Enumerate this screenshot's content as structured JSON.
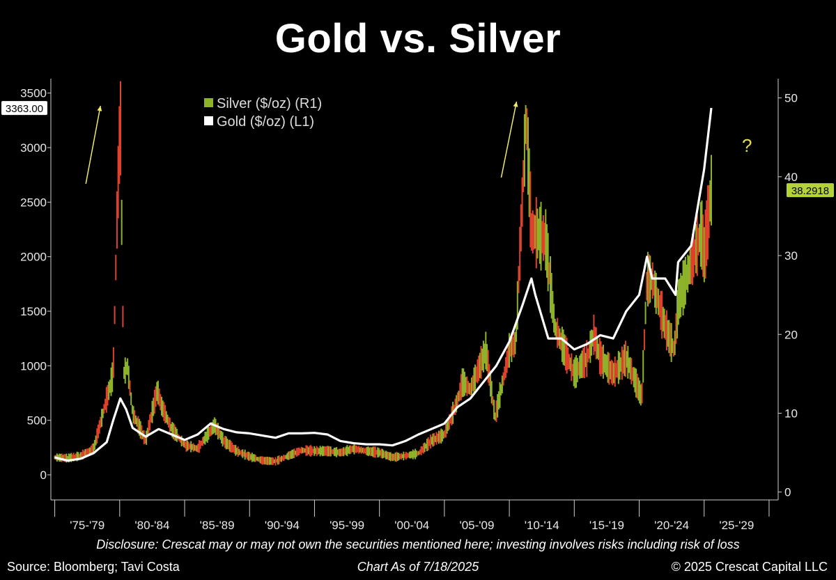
{
  "chart_data": {
    "type": "line",
    "title": "Gold vs. Silver",
    "x_period_labels": [
      "'75-'79",
      "'80-'84",
      "'85-'89",
      "'90-'94",
      "'95-'99",
      "'00-'04",
      "'05-'09",
      "'10-'14",
      "'15-'19",
      "'20-'24",
      "'25-'29"
    ],
    "y_left": {
      "ticks": [
        0,
        500,
        1000,
        1500,
        2000,
        2500,
        3000,
        3500
      ],
      "range": [
        -230,
        3600
      ]
    },
    "y_right": {
      "ticks": [
        0,
        10,
        20,
        30,
        40,
        50
      ],
      "range": [
        -1,
        52
      ]
    },
    "x_range": [
      1974.7,
      2030.7
    ],
    "series": [
      {
        "name": "Silver ($/oz) (R1)",
        "axis": "right",
        "color": "#8db32a",
        "x": [
          1975,
          1976,
          1977,
          1978,
          1979.5,
          1979.8,
          1980.05,
          1980.3,
          1980.6,
          1981,
          1982,
          1982.9,
          1983.2,
          1984,
          1985,
          1986,
          1987.3,
          1988,
          1989,
          1990,
          1991,
          1992,
          1993,
          1994,
          1995,
          1996,
          1997,
          1998,
          1999,
          2000,
          2001,
          2002,
          2003,
          2004,
          2005,
          2006,
          2006.4,
          2007,
          2008.2,
          2008.9,
          2009.5,
          2010,
          2010.5,
          2011.3,
          2011.7,
          2012,
          2012.8,
          2013.5,
          2014,
          2015,
          2016,
          2016.5,
          2017,
          2018,
          2019,
          2020.2,
          2020.6,
          2021,
          2022,
          2022.7,
          2023,
          2024,
          2024.8,
          2025,
          2025.55
        ],
        "y": [
          4.4,
          4.3,
          4.6,
          5.5,
          15,
          35,
          48,
          15,
          16,
          10,
          6.5,
          13,
          11,
          8,
          6,
          5.5,
          8.5,
          6.5,
          5.2,
          4.5,
          4,
          3.9,
          4.6,
          5.3,
          5.2,
          5.2,
          5,
          5.5,
          5.2,
          5,
          4.4,
          4.6,
          4.9,
          6.5,
          7.3,
          11.5,
          14,
          13,
          18,
          9.5,
          14,
          18,
          19,
          48,
          33,
          33,
          32,
          21,
          19,
          15,
          17,
          20,
          17,
          15,
          17,
          12,
          27,
          27,
          21,
          18,
          24,
          29,
          33,
          30,
          38.3
        ]
      },
      {
        "name": "Gold ($/oz) (L1)",
        "axis": "left",
        "color": "#ffffff",
        "x": [
          1975,
          1976,
          1977,
          1978,
          1979,
          1979.5,
          1980.05,
          1980.5,
          1981,
          1982,
          1983,
          1984,
          1985,
          1986,
          1987,
          1988,
          1989,
          1990,
          1991,
          1992,
          1993,
          1994,
          1995,
          1996,
          1997,
          1998,
          1999,
          2000,
          2001,
          2002,
          2003,
          2004,
          2005,
          2006,
          2007,
          2008,
          2009,
          2010,
          2011,
          2011.7,
          2012,
          2013,
          2013.5,
          2014,
          2015,
          2016,
          2017,
          2018,
          2019,
          2020,
          2020.6,
          2021,
          2022,
          2022.8,
          2023,
          2024,
          2024.5,
          2025,
          2025.55
        ],
        "y": [
          160,
          130,
          148,
          200,
          300,
          500,
          700,
          600,
          430,
          350,
          420,
          370,
          320,
          370,
          470,
          420,
          390,
          380,
          360,
          340,
          380,
          380,
          385,
          370,
          310,
          290,
          280,
          280,
          270,
          310,
          370,
          420,
          470,
          620,
          700,
          850,
          1000,
          1220,
          1550,
          1800,
          1650,
          1250,
          1250,
          1250,
          1150,
          1200,
          1280,
          1250,
          1500,
          1650,
          2000,
          1800,
          1800,
          1650,
          1950,
          2100,
          2450,
          2800,
          3363
        ]
      }
    ],
    "value_tags": {
      "gold_last": "3363.00",
      "silver_last": "38.2918"
    },
    "annotations": {
      "question_mark": "?"
    }
  },
  "footer": {
    "disclosure": "Disclosure: Crescat may or may not own the securities mentioned here; investing involves risks including risk of loss",
    "source": "Source: Bloomberg; Tavi Costa",
    "as_of": "Chart As of 7/18/2025",
    "copyright": "© 2025 Crescat Capital LLC"
  }
}
